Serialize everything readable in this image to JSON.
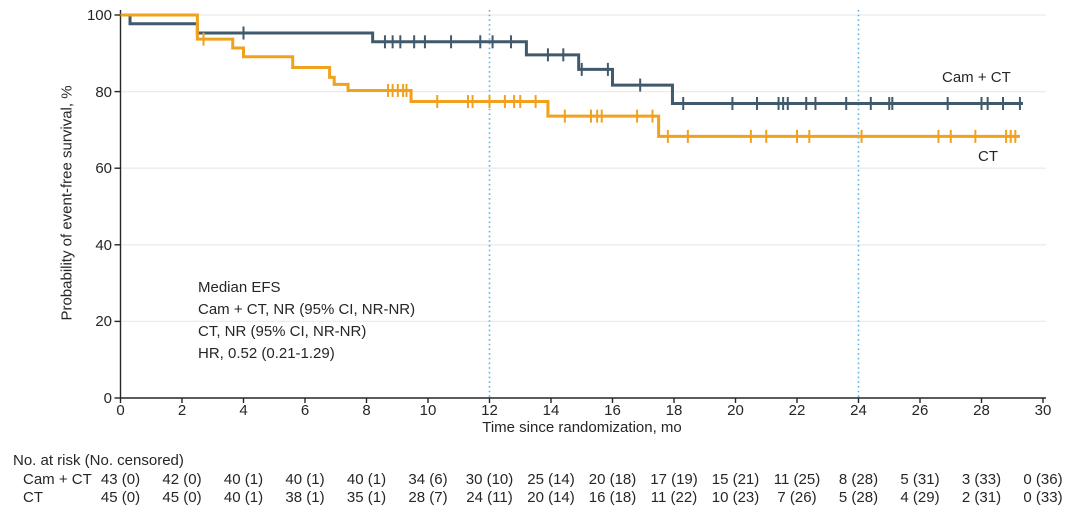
{
  "colors": {
    "camct": "#40596b",
    "ct": "#f0a11e",
    "grid": "#ebebeb",
    "axis": "#262626",
    "text": "#262626",
    "refline": "#5ab5e4",
    "background": "#ffffff"
  },
  "chart_data": {
    "type": "line",
    "subtype": "kaplan_meier_step_curve",
    "title": "",
    "xlabel": "Time since randomization, mo",
    "ylabel": "Probability of event-free survival, %",
    "xlim": [
      0,
      30
    ],
    "ylim": [
      0,
      100
    ],
    "xticks": [
      0,
      2,
      4,
      6,
      8,
      10,
      12,
      14,
      16,
      18,
      20,
      22,
      24,
      26,
      28,
      30
    ],
    "yticks": [
      0,
      20,
      40,
      60,
      80,
      100
    ],
    "gridlines_y": [
      20,
      40,
      60,
      80,
      100
    ],
    "grid": "horizontal-only",
    "reference_lines_x": [
      12,
      24
    ],
    "reference_line_style": "dotted",
    "legend_position": "direct-curve-labels",
    "annotation_lines": [
      "Median EFS",
      "Cam + CT, NR (95% CI, NR-NR)",
      "CT, NR (95% CI, NR-NR)",
      "HR, 0.52 (0.21-1.29)"
    ],
    "series": [
      {
        "name": "Cam + CT",
        "color": "#40596b",
        "steps": [
          [
            0,
            100
          ],
          [
            0.31,
            97.7
          ],
          [
            2.5,
            95.3
          ],
          [
            8.2,
            93.0
          ],
          [
            13.2,
            89.6
          ],
          [
            14.9,
            85.8
          ],
          [
            16.0,
            81.7
          ],
          [
            17.95,
            76.9
          ]
        ],
        "end_x": 29.35,
        "censor_marks": [
          [
            4.0,
            95.3
          ],
          [
            8.6,
            93.0
          ],
          [
            8.85,
            93.0
          ],
          [
            9.1,
            93.0
          ],
          [
            9.55,
            93.0
          ],
          [
            9.9,
            93.0
          ],
          [
            10.75,
            93.0
          ],
          [
            11.7,
            93.0
          ],
          [
            12.1,
            93.0
          ],
          [
            12.7,
            93.0
          ],
          [
            13.9,
            89.6
          ],
          [
            14.4,
            89.6
          ],
          [
            15.0,
            85.8
          ],
          [
            15.85,
            85.8
          ],
          [
            16.9,
            81.7
          ],
          [
            18.3,
            76.9
          ],
          [
            19.9,
            76.9
          ],
          [
            20.7,
            76.9
          ],
          [
            21.4,
            76.9
          ],
          [
            21.55,
            76.9
          ],
          [
            21.7,
            76.9
          ],
          [
            22.3,
            76.9
          ],
          [
            22.6,
            76.9
          ],
          [
            23.6,
            76.9
          ],
          [
            24.4,
            76.9
          ],
          [
            25.0,
            76.9
          ],
          [
            25.1,
            76.9
          ],
          [
            26.9,
            76.9
          ],
          [
            28.0,
            76.9
          ],
          [
            28.2,
            76.9
          ],
          [
            28.7,
            76.9
          ],
          [
            29.25,
            76.9
          ]
        ]
      },
      {
        "name": "CT",
        "color": "#f0a11e",
        "steps": [
          [
            0,
            100
          ],
          [
            2.5,
            93.7
          ],
          [
            3.65,
            91.4
          ],
          [
            4.0,
            89.1
          ],
          [
            5.6,
            86.3
          ],
          [
            6.8,
            83.7
          ],
          [
            6.95,
            81.9
          ],
          [
            7.4,
            80.3
          ],
          [
            9.45,
            77.4
          ],
          [
            13.9,
            73.6
          ],
          [
            17.5,
            68.3
          ]
        ],
        "end_x": 29.25,
        "censor_marks": [
          [
            2.7,
            93.7
          ],
          [
            8.7,
            80.3
          ],
          [
            8.85,
            80.3
          ],
          [
            9.02,
            80.3
          ],
          [
            9.19,
            80.3
          ],
          [
            9.3,
            80.3
          ],
          [
            10.3,
            77.4
          ],
          [
            11.3,
            77.4
          ],
          [
            11.45,
            77.4
          ],
          [
            12.0,
            77.4
          ],
          [
            12.5,
            77.4
          ],
          [
            12.8,
            77.4
          ],
          [
            13.0,
            77.4
          ],
          [
            13.5,
            77.4
          ],
          [
            14.45,
            73.6
          ],
          [
            15.3,
            73.6
          ],
          [
            15.5,
            73.6
          ],
          [
            15.65,
            73.6
          ],
          [
            16.8,
            73.6
          ],
          [
            17.3,
            73.6
          ],
          [
            17.8,
            68.3
          ],
          [
            18.45,
            68.3
          ],
          [
            20.5,
            68.3
          ],
          [
            21.0,
            68.3
          ],
          [
            22.0,
            68.3
          ],
          [
            22.4,
            68.3
          ],
          [
            24.1,
            68.3
          ],
          [
            26.6,
            68.3
          ],
          [
            27.0,
            68.3
          ],
          [
            27.8,
            68.3
          ],
          [
            28.8,
            68.3
          ],
          [
            28.95,
            68.3
          ],
          [
            29.1,
            68.3
          ]
        ]
      }
    ]
  },
  "risk_table": {
    "title": "No. at risk (No. censored)",
    "times": [
      0,
      2,
      4,
      6,
      8,
      10,
      12,
      14,
      16,
      18,
      20,
      22,
      24,
      26,
      28,
      30
    ],
    "rows": [
      {
        "name": "Cam + CT",
        "values": [
          "43 (0)",
          "42 (0)",
          "40 (1)",
          "40 (1)",
          "40 (1)",
          "34 (6)",
          "30 (10)",
          "25 (14)",
          "20 (18)",
          "17 (19)",
          "15 (21)",
          "11 (25)",
          "8 (28)",
          "5 (31)",
          "3 (33)",
          "0 (36)"
        ]
      },
      {
        "name": "CT",
        "values": [
          "45 (0)",
          "45 (0)",
          "40 (1)",
          "38 (1)",
          "35 (1)",
          "28 (7)",
          "24 (11)",
          "20 (14)",
          "16 (18)",
          "11 (22)",
          "10 (23)",
          "7 (26)",
          "5 (28)",
          "4 (29)",
          "2 (31)",
          "0 (33)"
        ]
      }
    ]
  }
}
